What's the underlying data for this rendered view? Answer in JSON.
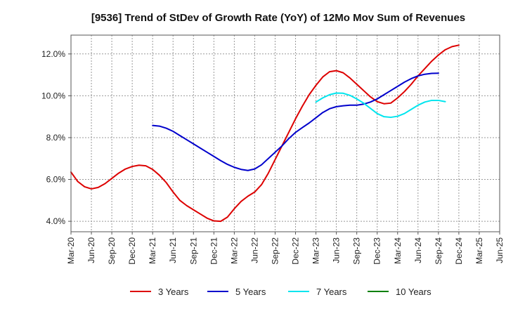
{
  "chart_data": {
    "type": "line",
    "title": "[9536]  Trend of StDev of Growth Rate (YoY) of 12Mo Mov Sum of Revenues",
    "xlabel": "",
    "ylabel": "",
    "x_start_month": "2020-03",
    "x_months_total": 63,
    "x_tick_every_months": 3,
    "x_ticks": [
      "Mar-20",
      "Jun-20",
      "Sep-20",
      "Dec-20",
      "Mar-21",
      "Jun-21",
      "Sep-21",
      "Dec-21",
      "Mar-22",
      "Jun-22",
      "Sep-22",
      "Dec-22",
      "Mar-23",
      "Jun-23",
      "Sep-23",
      "Dec-23",
      "Mar-24",
      "Jun-24",
      "Sep-24",
      "Dec-24",
      "Mar-25",
      "Jun-25"
    ],
    "ylim": [
      3.5,
      12.9
    ],
    "y_ticks": [
      4.0,
      6.0,
      8.0,
      10.0,
      12.0
    ],
    "y_tick_labels": [
      "4.0%",
      "6.0%",
      "8.0%",
      "10.0%",
      "12.0%"
    ],
    "grid": true,
    "legend_position": "bottom",
    "series": [
      {
        "name": "3 Years",
        "color": "#dd0000",
        "start_index": 0,
        "values": [
          6.35,
          5.9,
          5.65,
          5.55,
          5.62,
          5.8,
          6.05,
          6.3,
          6.5,
          6.62,
          6.68,
          6.65,
          6.48,
          6.2,
          5.85,
          5.4,
          5.0,
          4.75,
          4.55,
          4.35,
          4.15,
          4.02,
          4.0,
          4.2,
          4.6,
          4.95,
          5.2,
          5.4,
          5.75,
          6.3,
          6.95,
          7.6,
          8.25,
          8.9,
          9.5,
          10.05,
          10.5,
          10.9,
          11.15,
          11.2,
          11.1,
          10.85,
          10.55,
          10.25,
          9.95,
          9.72,
          9.62,
          9.65,
          9.9,
          10.2,
          10.55,
          10.95,
          11.3,
          11.65,
          11.95,
          12.2,
          12.35,
          12.42
        ]
      },
      {
        "name": "5 Years",
        "color": "#0000cc",
        "start_index": 12,
        "values": [
          8.58,
          8.55,
          8.45,
          8.3,
          8.1,
          7.9,
          7.7,
          7.5,
          7.3,
          7.1,
          6.9,
          6.72,
          6.58,
          6.48,
          6.43,
          6.5,
          6.7,
          7.0,
          7.3,
          7.6,
          7.95,
          8.25,
          8.48,
          8.7,
          8.95,
          9.2,
          9.38,
          9.48,
          9.52,
          9.55,
          9.55,
          9.6,
          9.7,
          9.85,
          10.05,
          10.25,
          10.45,
          10.65,
          10.82,
          10.95,
          11.03,
          11.07,
          11.08
        ]
      },
      {
        "name": "7 Years",
        "color": "#00e5ee",
        "start_index": 36,
        "values": [
          9.7,
          9.9,
          10.05,
          10.13,
          10.12,
          10.02,
          9.85,
          9.65,
          9.4,
          9.15,
          9.0,
          8.97,
          9.02,
          9.15,
          9.35,
          9.55,
          9.7,
          9.78,
          9.78,
          9.72
        ]
      },
      {
        "name": "10 Years",
        "color": "#008000",
        "start_index": 0,
        "values": []
      }
    ]
  }
}
